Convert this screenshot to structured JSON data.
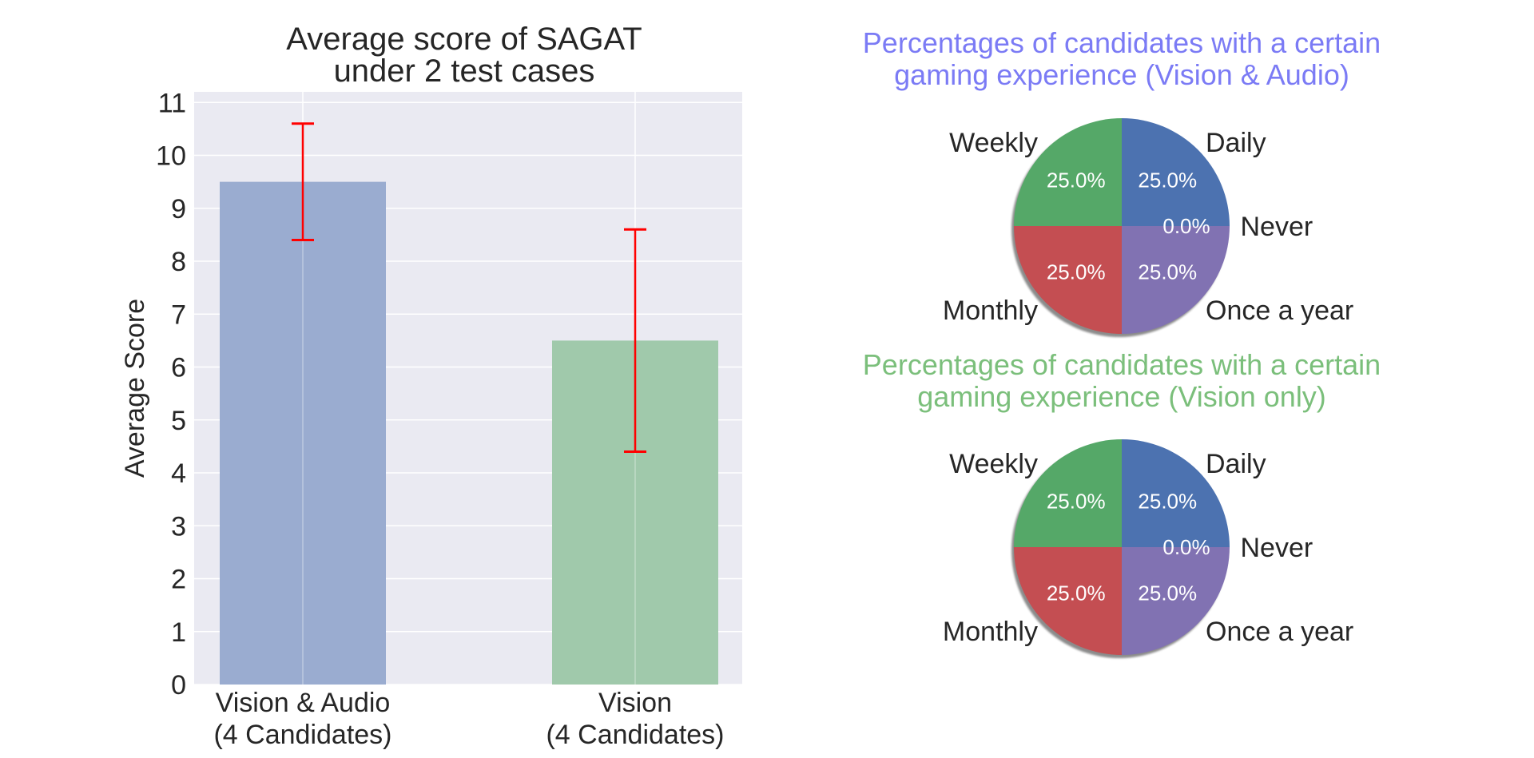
{
  "chart_data": [
    {
      "type": "bar",
      "title": "Average score of SAGAT\nunder 2 test cases",
      "xlabel": "",
      "ylabel": "Average Score",
      "ylim": [
        0,
        11.2
      ],
      "yticks": [
        0,
        1,
        2,
        3,
        4,
        5,
        6,
        7,
        8,
        9,
        10,
        11
      ],
      "categories": [
        "Vision & Audio\n(4 Candidates)",
        "Vision\n(4 Candidates)"
      ],
      "values": [
        9.5,
        6.5
      ],
      "error": [
        1.1,
        2.1
      ],
      "bar_colors": [
        "#9aacd0",
        "#a0c9ab"
      ],
      "error_color": "#ff0000",
      "background": "#eaeaf2",
      "grid": true
    },
    {
      "type": "pie",
      "title": "Percentages of candidates with a certain\ngaming experience (Vision & Audio)",
      "title_color": "#7b7bf5",
      "labels": [
        "Daily",
        "Never",
        "Once a year",
        "Monthly",
        "Weekly"
      ],
      "values": [
        25.0,
        0.0,
        25.0,
        25.0,
        25.0
      ],
      "pct_labels": [
        "25.0%",
        "0.0%",
        "25.0%",
        "25.0%",
        "25.0%"
      ],
      "colors": [
        "#4c72b0",
        "#ccb974",
        "#8172b2",
        "#c44e52",
        "#55a868"
      ],
      "shadow": true
    },
    {
      "type": "pie",
      "title": "Percentages of candidates with a certain\ngaming experience (Vision only)",
      "title_color": "#7bbf7b",
      "labels": [
        "Daily",
        "Never",
        "Once a year",
        "Monthly",
        "Weekly"
      ],
      "values": [
        25.0,
        0.0,
        25.0,
        25.0,
        25.0
      ],
      "pct_labels": [
        "25.0%",
        "0.0%",
        "25.0%",
        "25.0%",
        "25.0%"
      ],
      "colors": [
        "#4c72b0",
        "#ccb974",
        "#8172b2",
        "#c44e52",
        "#55a868"
      ],
      "shadow": true
    }
  ]
}
